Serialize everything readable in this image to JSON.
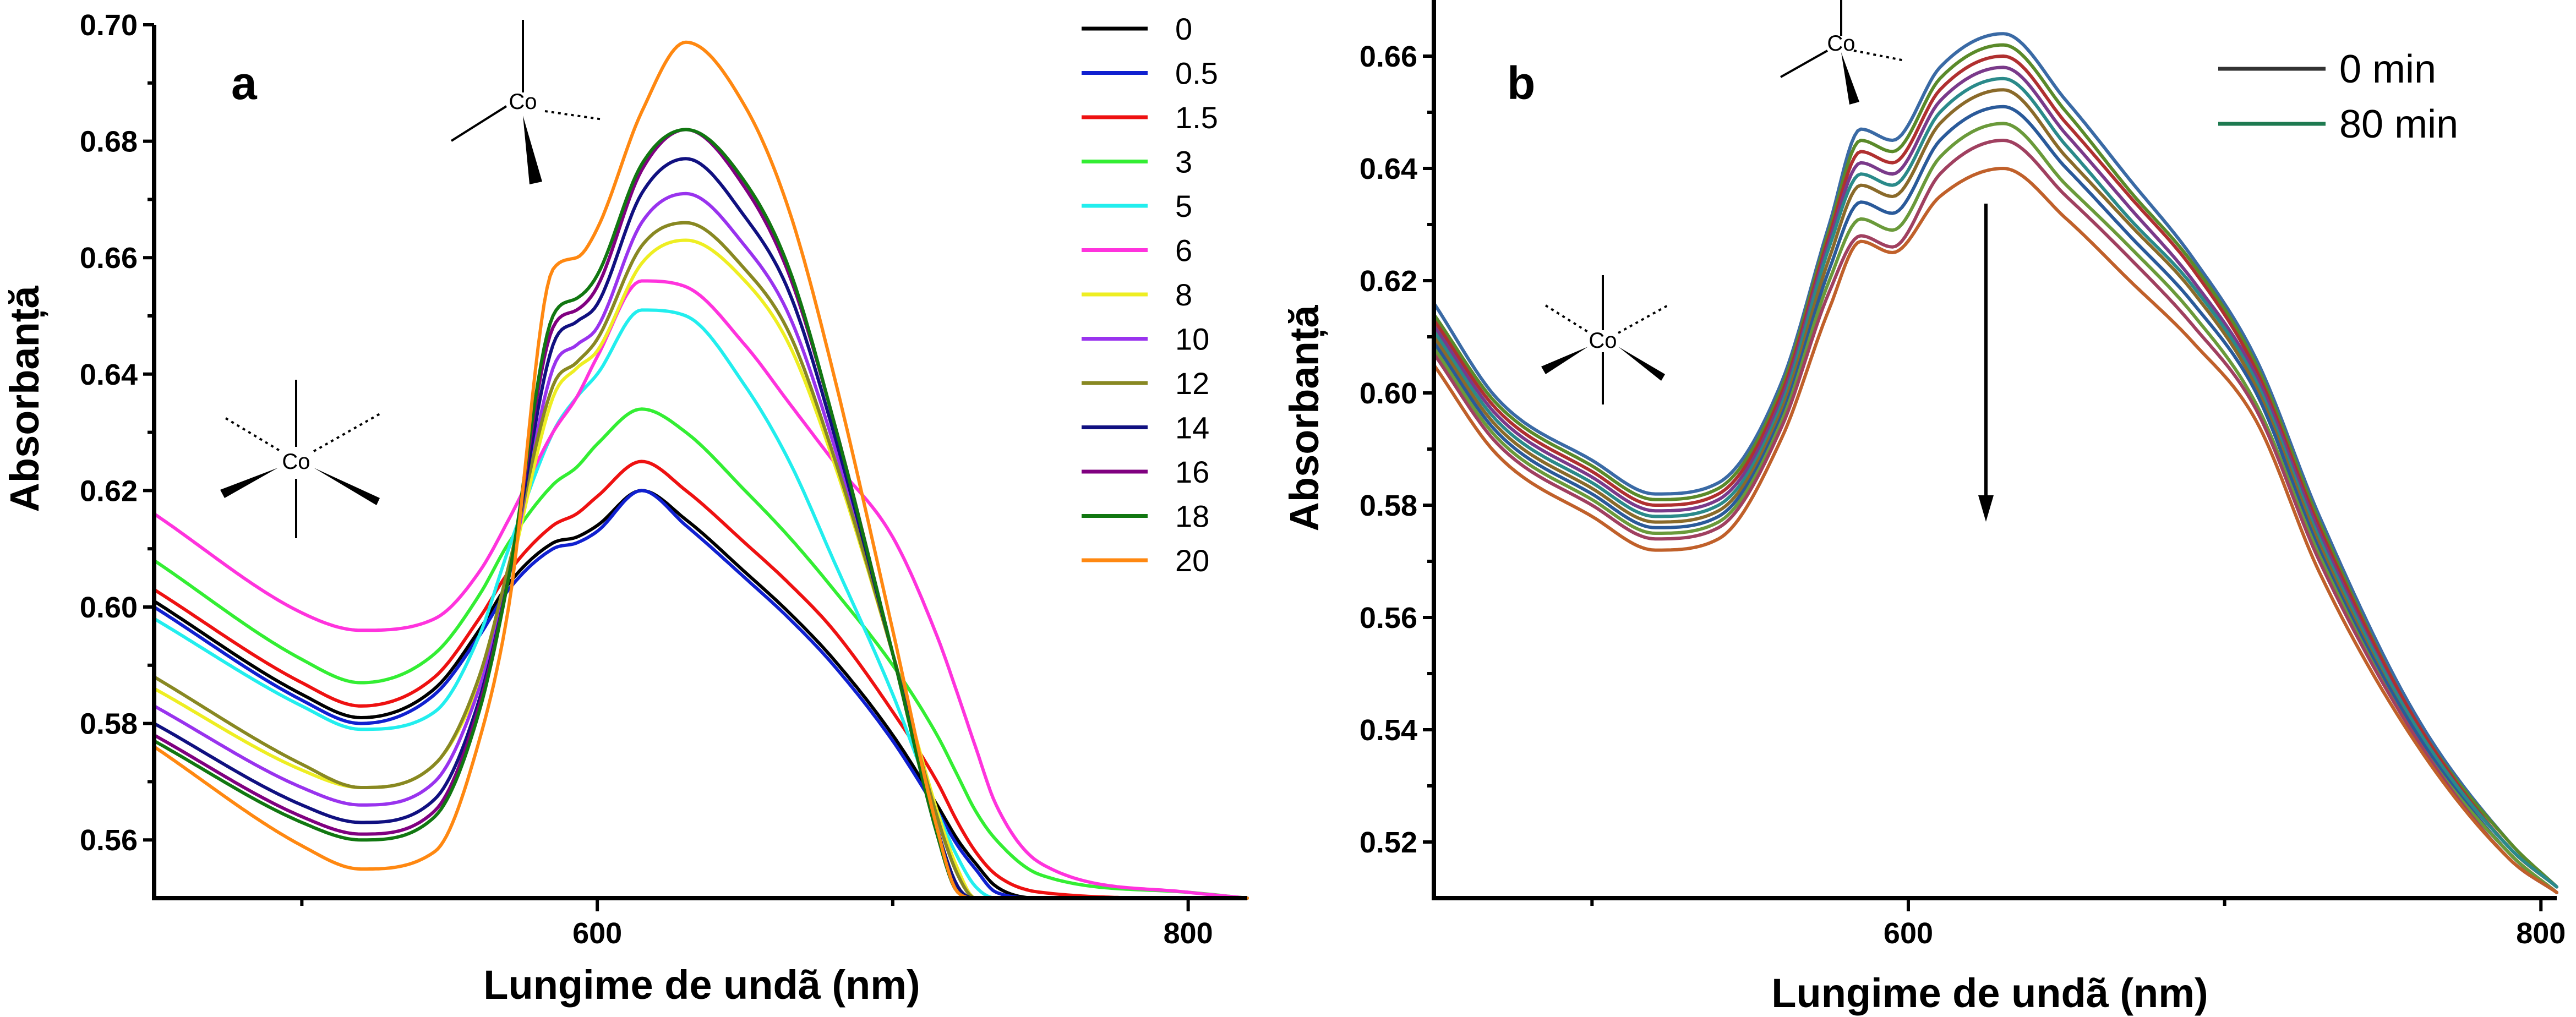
{
  "chart_data": [
    {
      "type": "line",
      "panel_label": "a",
      "xlabel": "Lungime de undã (nm)",
      "ylabel": "Absorbanță",
      "xlim": [
        450,
        820
      ],
      "ylim": [
        0.55,
        0.7
      ],
      "x_ticks": [
        600,
        800
      ],
      "y_ticks": [
        0.56,
        0.58,
        0.6,
        0.62,
        0.64,
        0.66,
        0.68,
        0.7
      ],
      "y_tick_labels": [
        "0.56",
        "0.58",
        "0.60",
        "0.62",
        "0.64",
        "0.66",
        "0.68",
        "0.70"
      ],
      "legend_position": "top-right",
      "x": [
        450,
        500,
        520,
        545,
        560,
        570,
        585,
        593,
        600,
        615,
        630,
        650,
        665,
        680,
        700,
        715,
        722,
        728,
        735,
        750,
        800,
        820
      ],
      "series": [
        {
          "name": "0",
          "color": "#000000",
          "values": [
            0.601,
            0.585,
            0.581,
            0.586,
            0.596,
            0.604,
            0.611,
            0.612,
            0.614,
            0.62,
            0.615,
            0.606,
            0.599,
            0.591,
            0.578,
            0.566,
            0.56,
            0.556,
            0.552,
            0.55,
            0.55,
            0.55
          ]
        },
        {
          "name": "0.5",
          "color": "#1020d0",
          "values": [
            0.6,
            0.584,
            0.58,
            0.585,
            0.595,
            0.603,
            0.61,
            0.611,
            0.613,
            0.62,
            0.614,
            0.605,
            0.598,
            0.59,
            0.577,
            0.565,
            0.559,
            0.555,
            0.551,
            0.55,
            0.55,
            0.55
          ]
        },
        {
          "name": "1.5",
          "color": "#ee1111",
          "values": [
            0.603,
            0.587,
            0.583,
            0.588,
            0.598,
            0.606,
            0.614,
            0.616,
            0.619,
            0.625,
            0.62,
            0.611,
            0.604,
            0.596,
            0.582,
            0.57,
            0.563,
            0.558,
            0.554,
            0.551,
            0.55,
            0.55
          ]
        },
        {
          "name": "3",
          "color": "#33ee33",
          "values": [
            0.608,
            0.591,
            0.587,
            0.592,
            0.602,
            0.611,
            0.621,
            0.624,
            0.628,
            0.634,
            0.63,
            0.62,
            0.612,
            0.603,
            0.59,
            0.578,
            0.571,
            0.565,
            0.56,
            0.554,
            0.551,
            0.55
          ]
        },
        {
          "name": "5",
          "color": "#22eeee",
          "values": [
            0.598,
            0.583,
            0.579,
            0.582,
            0.595,
            0.61,
            0.63,
            0.636,
            0.64,
            0.651,
            0.65,
            0.638,
            0.625,
            0.608,
            0.585,
            0.565,
            0.557,
            0.552,
            0.55,
            0.55,
            0.55,
            0.55
          ]
        },
        {
          "name": "6",
          "color": "#ff33dd",
          "values": [
            0.616,
            0.599,
            0.596,
            0.598,
            0.606,
            0.615,
            0.63,
            0.636,
            0.643,
            0.656,
            0.655,
            0.645,
            0.635,
            0.625,
            0.612,
            0.595,
            0.585,
            0.576,
            0.566,
            0.556,
            0.551,
            0.55
          ]
        },
        {
          "name": "8",
          "color": "#eeee22",
          "values": [
            0.586,
            0.572,
            0.569,
            0.573,
            0.587,
            0.605,
            0.636,
            0.641,
            0.644,
            0.659,
            0.663,
            0.656,
            0.645,
            0.625,
            0.592,
            0.565,
            0.555,
            0.55,
            0.55,
            0.55,
            0.55,
            0.55
          ]
        },
        {
          "name": "10",
          "color": "#9933ee",
          "values": [
            0.583,
            0.569,
            0.566,
            0.57,
            0.586,
            0.605,
            0.641,
            0.645,
            0.648,
            0.666,
            0.671,
            0.662,
            0.65,
            0.628,
            0.592,
            0.564,
            0.554,
            0.55,
            0.55,
            0.55,
            0.55,
            0.55
          ]
        },
        {
          "name": "12",
          "color": "#888822",
          "values": [
            0.588,
            0.573,
            0.569,
            0.573,
            0.588,
            0.607,
            0.638,
            0.642,
            0.646,
            0.662,
            0.666,
            0.658,
            0.647,
            0.626,
            0.592,
            0.564,
            0.554,
            0.55,
            0.55,
            0.55,
            0.55,
            0.55
          ]
        },
        {
          "name": "14",
          "color": "#101080",
          "values": [
            0.58,
            0.566,
            0.563,
            0.567,
            0.584,
            0.605,
            0.645,
            0.649,
            0.652,
            0.671,
            0.677,
            0.667,
            0.654,
            0.63,
            0.592,
            0.562,
            0.552,
            0.55,
            0.55,
            0.55,
            0.55,
            0.55
          ]
        },
        {
          "name": "16",
          "color": "#800080",
          "values": [
            0.578,
            0.564,
            0.561,
            0.565,
            0.583,
            0.605,
            0.648,
            0.651,
            0.655,
            0.675,
            0.682,
            0.672,
            0.657,
            0.632,
            0.592,
            0.561,
            0.551,
            0.55,
            0.55,
            0.55,
            0.55,
            0.55
          ]
        },
        {
          "name": "18",
          "color": "#117711",
          "values": [
            0.577,
            0.563,
            0.56,
            0.564,
            0.582,
            0.605,
            0.65,
            0.653,
            0.657,
            0.676,
            0.682,
            0.673,
            0.658,
            0.632,
            0.592,
            0.561,
            0.551,
            0.55,
            0.55,
            0.55,
            0.55,
            0.55
          ]
        },
        {
          "name": "20",
          "color": "#ff8811",
          "values": [
            0.576,
            0.559,
            0.555,
            0.558,
            0.577,
            0.6,
            0.658,
            0.66,
            0.665,
            0.685,
            0.697,
            0.686,
            0.668,
            0.64,
            0.596,
            0.562,
            0.551,
            0.55,
            0.55,
            0.55,
            0.55,
            0.55
          ]
        }
      ]
    },
    {
      "type": "line",
      "panel_label": "b",
      "xlabel": "Lungime de undã (nm)",
      "ylabel": "Absorbanță",
      "xlim": [
        450,
        805
      ],
      "ylim": [
        0.51,
        0.67
      ],
      "x_ticks": [
        600,
        800
      ],
      "y_ticks": [
        0.52,
        0.54,
        0.56,
        0.58,
        0.6,
        0.62,
        0.64,
        0.66
      ],
      "y_tick_labels": [
        "0.52",
        "0.54",
        "0.56",
        "0.58",
        "0.60",
        "0.62",
        "0.64",
        "0.66"
      ],
      "legend_position": "top-right",
      "legend": [
        {
          "name": "0 min",
          "color": "#333333"
        },
        {
          "name": "80 min",
          "color": "#1e7a50"
        }
      ],
      "annotation": "arrow pointing down at the 630 nm maximum",
      "x": [
        450,
        470,
        500,
        520,
        540,
        560,
        575,
        585,
        595,
        610,
        630,
        650,
        670,
        690,
        710,
        730,
        760,
        790,
        805
      ],
      "series": [
        {
          "name": "0 min",
          "color": "#3a6aa5",
          "values": [
            0.616,
            0.599,
            0.588,
            0.582,
            0.584,
            0.602,
            0.63,
            0.647,
            0.645,
            0.658,
            0.664,
            0.652,
            0.638,
            0.624,
            0.606,
            0.578,
            0.543,
            0.52,
            0.512
          ]
        },
        {
          "name": "",
          "color": "#5a8a2a",
          "values": [
            0.614,
            0.598,
            0.587,
            0.581,
            0.583,
            0.601,
            0.629,
            0.645,
            0.643,
            0.656,
            0.662,
            0.65,
            0.636,
            0.623,
            0.605,
            0.577,
            0.542,
            0.52,
            0.512
          ]
        },
        {
          "name": "",
          "color": "#b03030",
          "values": [
            0.613,
            0.597,
            0.586,
            0.58,
            0.582,
            0.6,
            0.628,
            0.643,
            0.641,
            0.654,
            0.66,
            0.648,
            0.635,
            0.622,
            0.604,
            0.576,
            0.542,
            0.519,
            0.512
          ]
        },
        {
          "name": "",
          "color": "#7a3a8a",
          "values": [
            0.612,
            0.596,
            0.585,
            0.579,
            0.581,
            0.599,
            0.627,
            0.641,
            0.639,
            0.652,
            0.658,
            0.646,
            0.633,
            0.62,
            0.603,
            0.575,
            0.541,
            0.519,
            0.512
          ]
        },
        {
          "name": "",
          "color": "#2a8a8a",
          "values": [
            0.611,
            0.595,
            0.584,
            0.578,
            0.58,
            0.598,
            0.626,
            0.639,
            0.637,
            0.65,
            0.656,
            0.644,
            0.631,
            0.619,
            0.602,
            0.574,
            0.541,
            0.519,
            0.512
          ]
        },
        {
          "name": "",
          "color": "#8a6a2a",
          "values": [
            0.61,
            0.594,
            0.583,
            0.577,
            0.579,
            0.597,
            0.624,
            0.637,
            0.635,
            0.648,
            0.654,
            0.642,
            0.63,
            0.618,
            0.601,
            0.573,
            0.54,
            0.518,
            0.511
          ]
        },
        {
          "name": "",
          "color": "#2a5a9a",
          "values": [
            0.609,
            0.593,
            0.582,
            0.576,
            0.578,
            0.596,
            0.622,
            0.634,
            0.632,
            0.645,
            0.651,
            0.64,
            0.628,
            0.616,
            0.6,
            0.572,
            0.54,
            0.518,
            0.511
          ]
        },
        {
          "name": "",
          "color": "#6a9a3a",
          "values": [
            0.608,
            0.592,
            0.581,
            0.575,
            0.577,
            0.595,
            0.62,
            0.631,
            0.629,
            0.642,
            0.648,
            0.637,
            0.626,
            0.614,
            0.598,
            0.571,
            0.539,
            0.518,
            0.511
          ]
        },
        {
          "name": "",
          "color": "#a04060",
          "values": [
            0.607,
            0.591,
            0.58,
            0.574,
            0.576,
            0.594,
            0.618,
            0.628,
            0.626,
            0.639,
            0.645,
            0.635,
            0.624,
            0.612,
            0.597,
            0.57,
            0.539,
            0.517,
            0.511
          ]
        },
        {
          "name": "80 min",
          "color": "#c0602a",
          "values": [
            0.605,
            0.589,
            0.578,
            0.572,
            0.574,
            0.592,
            0.615,
            0.627,
            0.625,
            0.635,
            0.64,
            0.631,
            0.62,
            0.609,
            0.595,
            0.568,
            0.538,
            0.517,
            0.511
          ]
        }
      ]
    }
  ]
}
